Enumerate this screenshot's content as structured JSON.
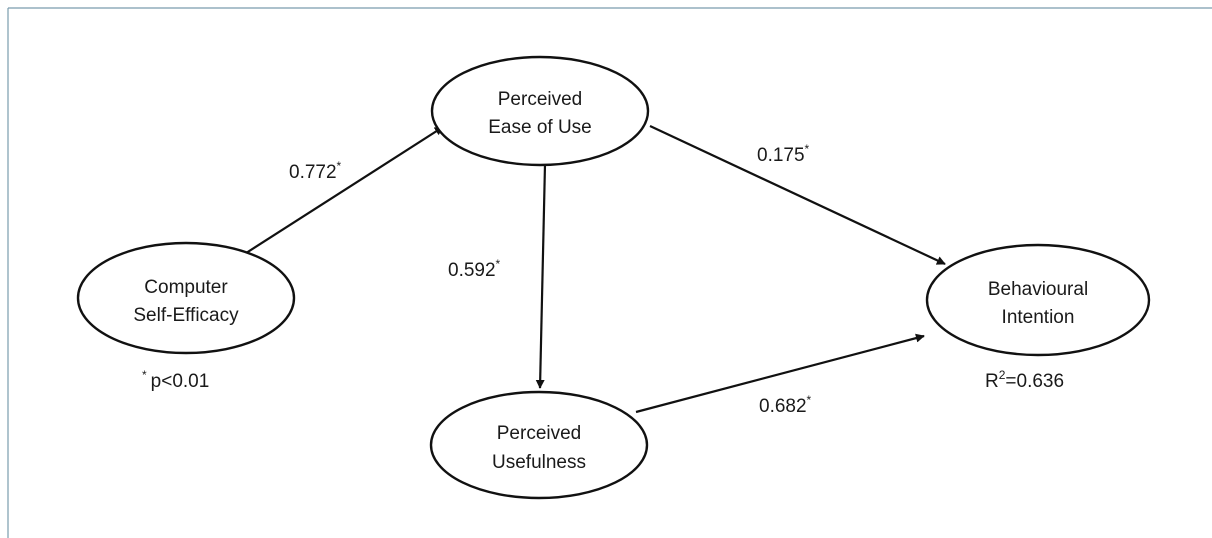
{
  "nodes": {
    "computer_self_efficacy": {
      "line1": "Computer",
      "line2": "Self-Efficacy"
    },
    "perceived_ease_of_use": {
      "line1": "Perceived",
      "line2": "Ease of Use"
    },
    "perceived_usefulness": {
      "line1": "Perceived",
      "line2": "Usefulness"
    },
    "behavioural_intention": {
      "line1": "Behavioural",
      "line2": "Intention"
    }
  },
  "paths": {
    "cse_to_peou": {
      "value": "0.772",
      "mark": "*"
    },
    "peou_to_bi": {
      "value": "0.175",
      "mark": "*"
    },
    "peou_to_pu": {
      "value": "0.592",
      "mark": "*"
    },
    "pu_to_bi": {
      "value": "0.682",
      "mark": "*"
    }
  },
  "significance_note": {
    "mark": "*",
    "text": "p<0.01"
  },
  "r_squared": {
    "symbol": "R",
    "exponent": "2",
    "text": "=0.636"
  },
  "colors": {
    "frame_border": "#7a9cae",
    "stroke": "#111111"
  }
}
